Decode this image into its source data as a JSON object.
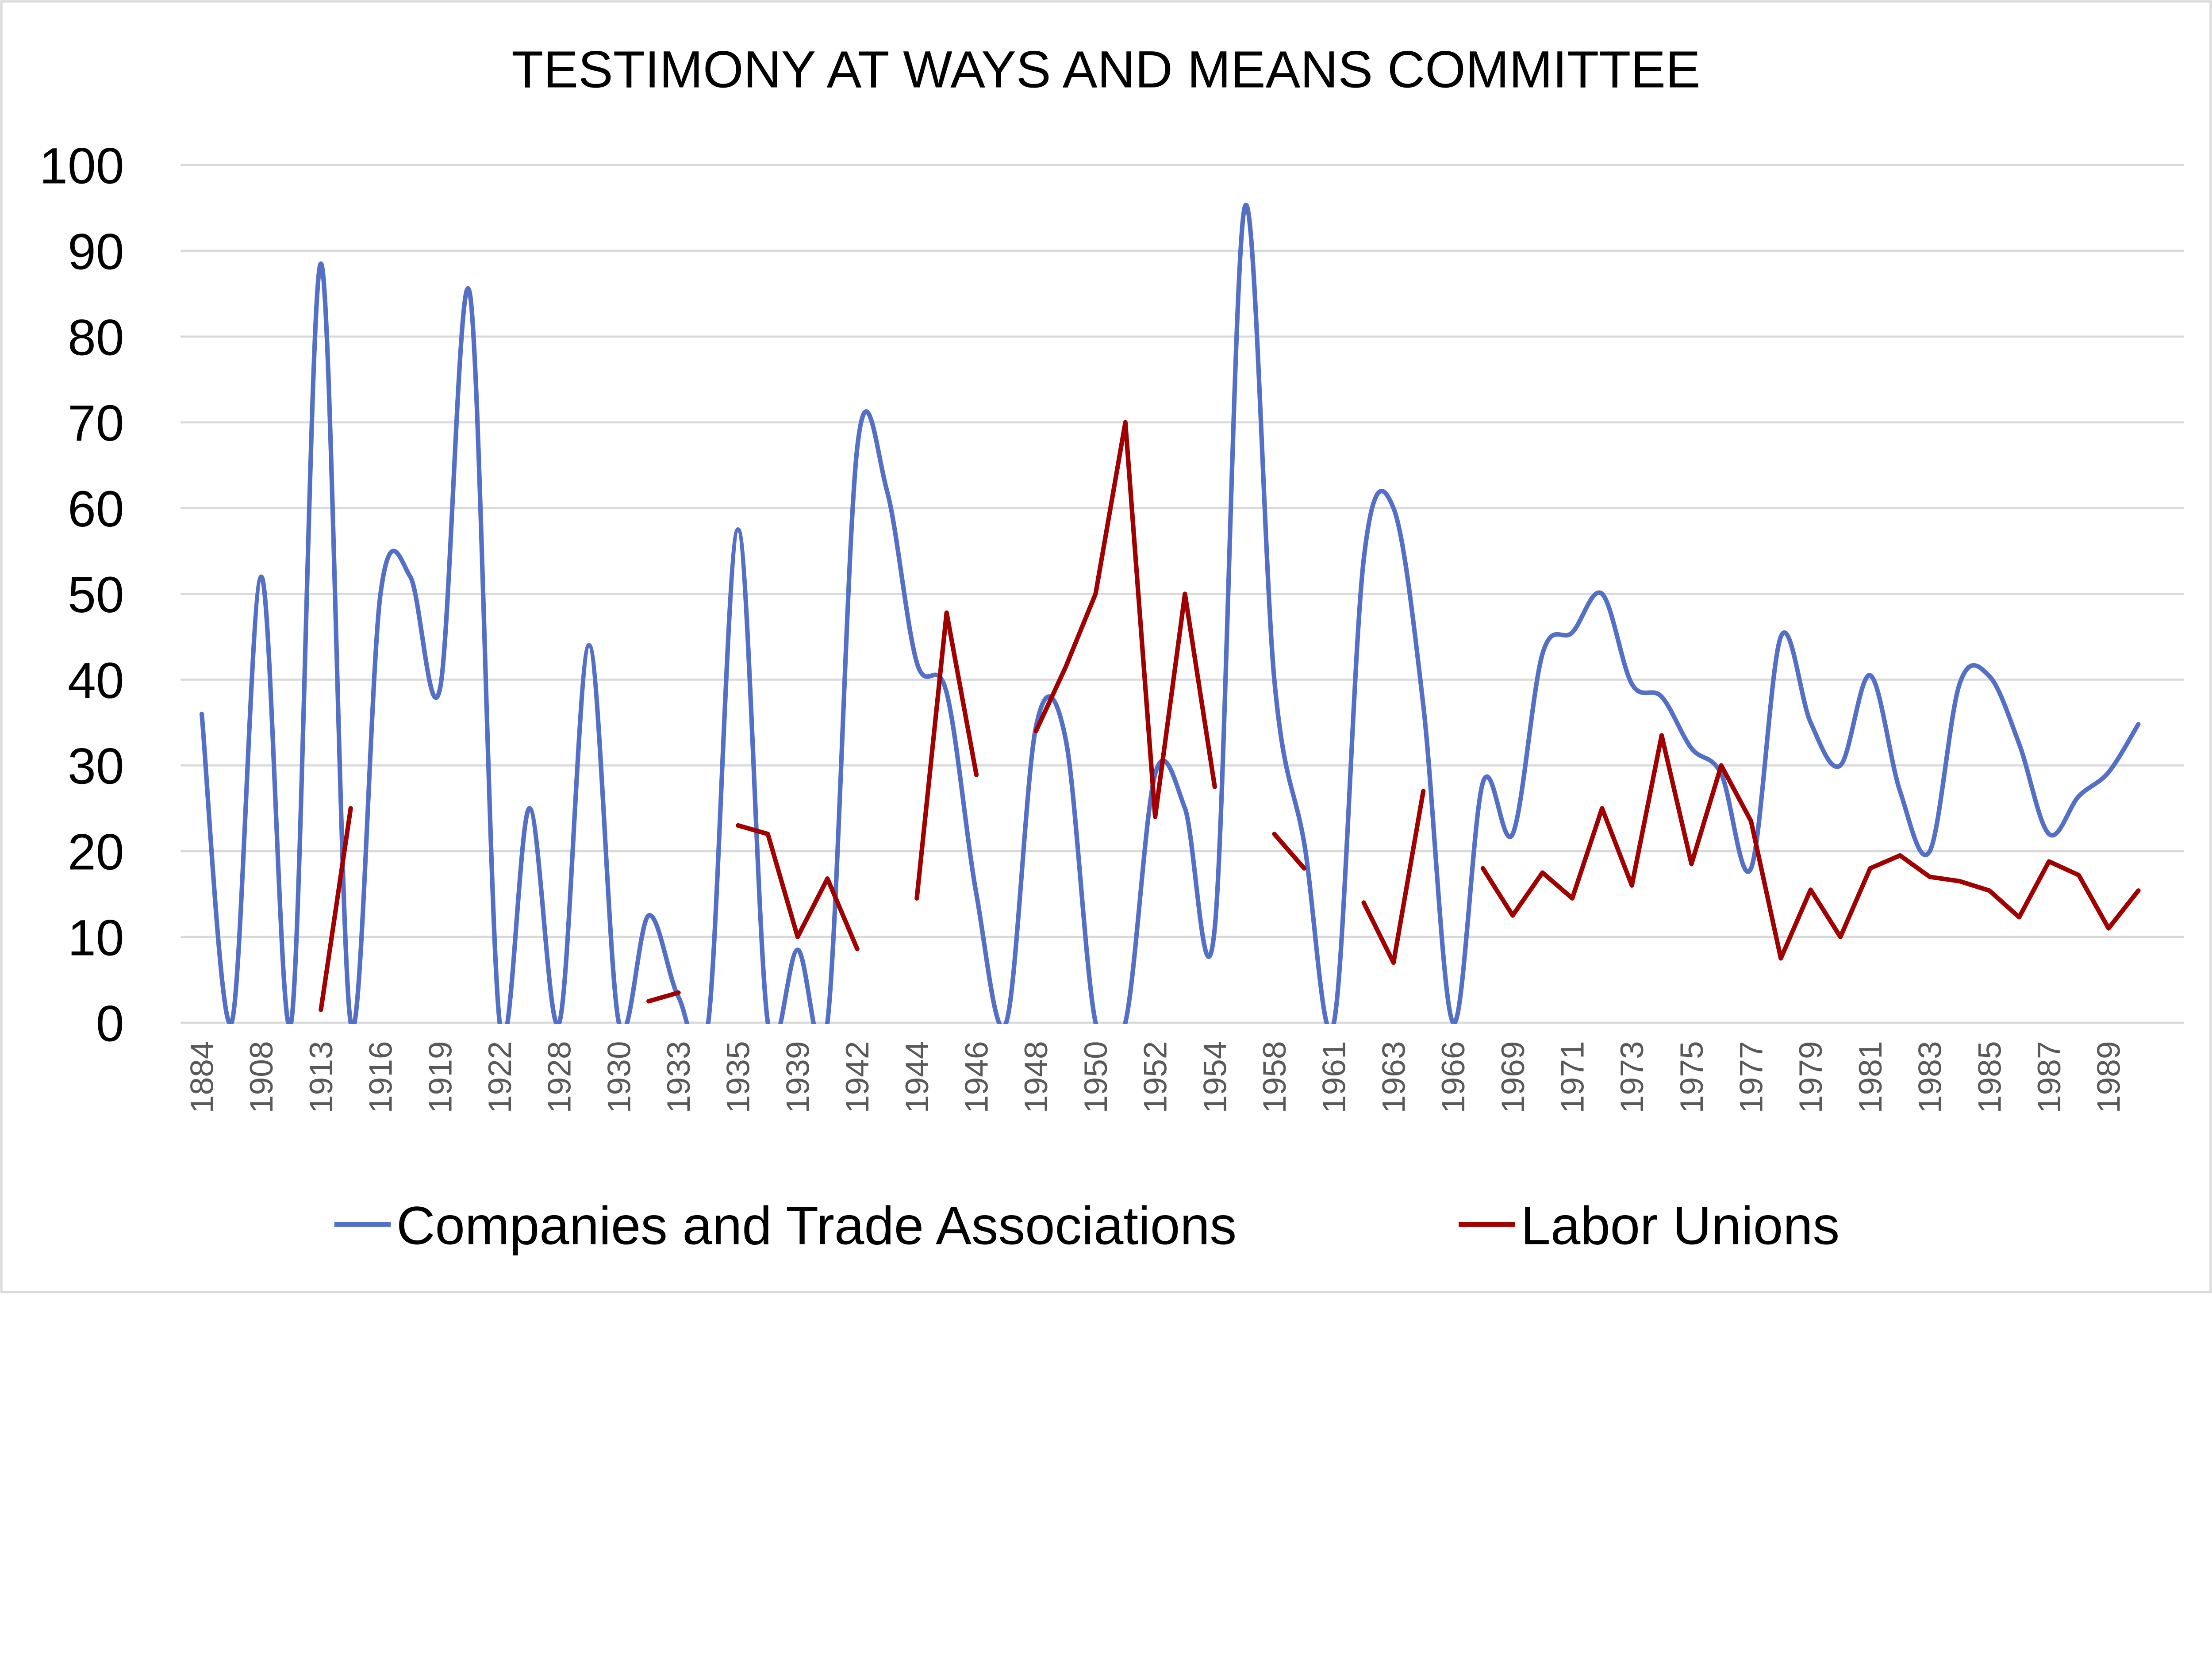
{
  "chart_data": {
    "type": "line",
    "title": "TESTIMONY AT WAYS AND MEANS COMMITTEE",
    "xlabel": "",
    "ylabel": "",
    "ylim": [
      0,
      100
    ],
    "yticks": [
      0,
      10,
      20,
      30,
      40,
      50,
      60,
      70,
      80,
      90,
      100
    ],
    "grid": "horizontal",
    "legend_position": "bottom",
    "categories": [
      "1884",
      "",
      "1908",
      "",
      "1913",
      "",
      "1916",
      "",
      "1919",
      "",
      "1922",
      "",
      "1928",
      "",
      "1930",
      "",
      "1933",
      "",
      "1935",
      "",
      "1939",
      "",
      "1942",
      "",
      "1944",
      "",
      "1946",
      "",
      "1948",
      "",
      "1950",
      "",
      "1952",
      "",
      "1954",
      "",
      "1958",
      "",
      "1961",
      "",
      "1963",
      "",
      "1966",
      "",
      "1969",
      "",
      "1971",
      "",
      "1973",
      "",
      "1975",
      "",
      "1977",
      "",
      "1979",
      "",
      "1981",
      "",
      "1983",
      "",
      "1985",
      "",
      "1987",
      "",
      "1989",
      ""
    ],
    "series": [
      {
        "name": "Companies and Trade Associations",
        "color": "#5470C6",
        "smoothed": true,
        "values": [
          36,
          0,
          52,
          0,
          88.5,
          0,
          50,
          52,
          39,
          85,
          0,
          25,
          0,
          44,
          0,
          12.5,
          3,
          0,
          57.5,
          0,
          8.5,
          0,
          67,
          62,
          42,
          38.5,
          15,
          0,
          34.5,
          33,
          0,
          0,
          29,
          25,
          11,
          95,
          40,
          21,
          0,
          54,
          60,
          37,
          0,
          28,
          22,
          43,
          45.5,
          50,
          39.5,
          38,
          32,
          29,
          18,
          45,
          35,
          30,
          40.5,
          27,
          20,
          39.5,
          40.4,
          32.5,
          22,
          26.4,
          29.2,
          34.8
        ]
      },
      {
        "name": "Labor Unions",
        "color": "#A00000",
        "smoothed": false,
        "values": [
          null,
          null,
          null,
          null,
          1.5,
          25,
          null,
          null,
          null,
          null,
          null,
          null,
          null,
          null,
          null,
          2.5,
          3.5,
          null,
          23,
          22,
          10,
          16.8,
          8.6,
          null,
          14.5,
          47.8,
          28.9,
          null,
          34,
          41.5,
          50,
          70,
          24,
          50,
          27.5,
          null,
          22,
          18,
          null,
          14,
          7,
          27,
          null,
          18,
          12.5,
          17.5,
          14.5,
          25,
          16,
          33.5,
          18.5,
          30,
          23.5,
          7.5,
          15.5,
          10,
          18,
          19.5,
          17,
          16.5,
          15.4,
          12.3,
          18.8,
          17.2,
          11,
          15.4
        ]
      }
    ]
  }
}
